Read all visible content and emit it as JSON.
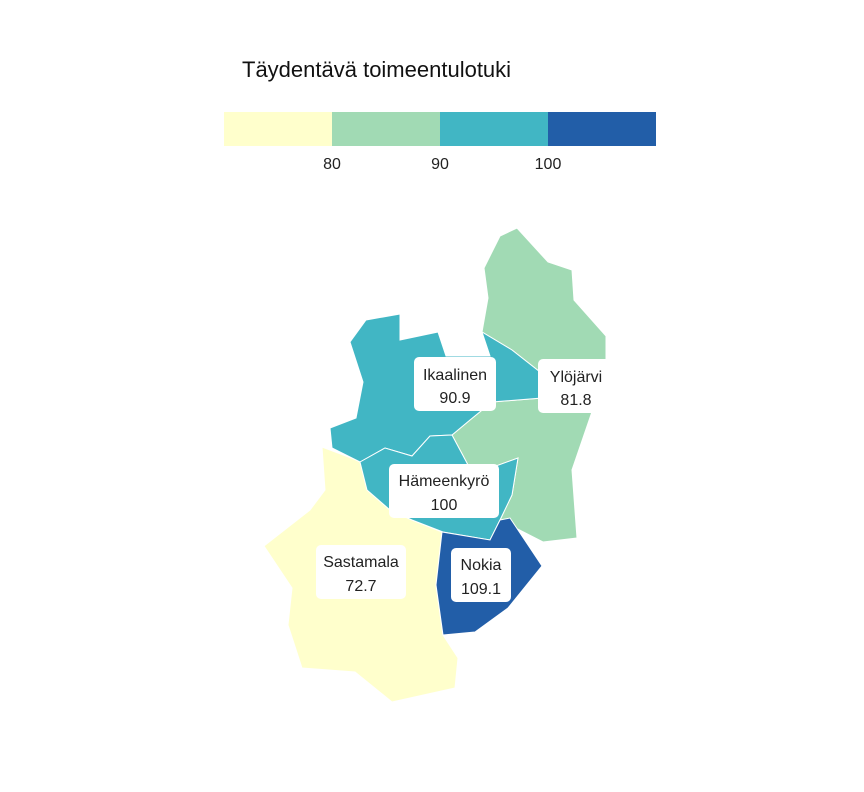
{
  "legend": {
    "title": "Täydentävä toimeentulotuki",
    "ticks": [
      "80",
      "90",
      "100"
    ],
    "colors": [
      "#ffffcc",
      "#a1dab4",
      "#41b6c4",
      "#225ea8"
    ]
  },
  "regions": [
    {
      "id": "sastamala",
      "name": "Sastamala",
      "value": "72.7",
      "color": "#ffffcc"
    },
    {
      "id": "ylojarvi",
      "name": "Ylöjärvi",
      "value": "81.8",
      "color": "#a1dab4"
    },
    {
      "id": "ikaalinen",
      "name": "Ikaalinen",
      "value": "90.9",
      "color": "#41b6c4"
    },
    {
      "id": "hameenkyro",
      "name": "Hämeenkyrö",
      "value": "100",
      "color": "#41b6c4"
    },
    {
      "id": "nokia",
      "name": "Nokia",
      "value": "109.1",
      "color": "#225ea8"
    }
  ]
}
